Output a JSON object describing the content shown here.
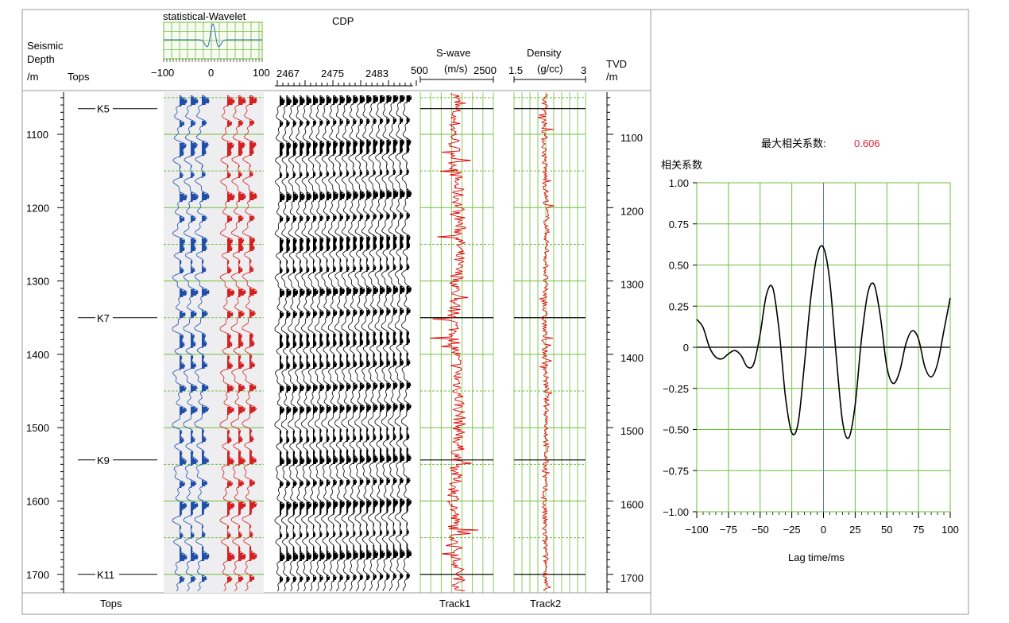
{
  "header": {
    "depth_label": [
      "Seismic",
      "Depth",
      "/m"
    ],
    "tops_label": "Tops",
    "wavelet_title": "statistical-Wavelet",
    "wavelet_ticks": [
      "−100",
      "0",
      "100"
    ],
    "cdp_title": "CDP",
    "cdp_ticks": [
      "2467",
      "2475",
      "2483"
    ],
    "swave_title": "S-wave",
    "swave_unit": "(m/s)",
    "swave_ticks": [
      "500",
      "2500"
    ],
    "density_title": "Density",
    "density_unit": "(g/cc)",
    "density_ticks": [
      "1.5",
      "3"
    ],
    "tvd_label": [
      "TVD",
      "/m"
    ]
  },
  "footer": {
    "tops": "Tops",
    "track1": "Track1",
    "track2": "Track2"
  },
  "depth_ticks": [
    "1100",
    "1200",
    "1300",
    "1400",
    "1500",
    "1600",
    "1700"
  ],
  "tops": [
    {
      "name": "K5",
      "depth": 1065
    },
    {
      "name": "K7",
      "depth": 1350
    },
    {
      "name": "K9",
      "depth": 1544
    },
    {
      "name": "K11",
      "depth": 1700
    }
  ],
  "colors": {
    "grid": "#6cbf3a",
    "synthetic": "#1f4fa8",
    "seismic": "#d42020",
    "trace": "#000000",
    "log": "#e00000",
    "corr_curve": "#000000",
    "max_value": "#d7263d"
  },
  "chart_data": {
    "type": "line",
    "title_prefix": "最大相关系数:",
    "title_value": "0.606",
    "ylabel": "相关系数",
    "xlabel": "Lag time/ms",
    "xlim": [
      -100,
      100
    ],
    "ylim": [
      -1.0,
      1.0
    ],
    "xticks": [
      "−100",
      "−75",
      "−50",
      "−25",
      "0",
      "25",
      "50",
      "75",
      "100"
    ],
    "yticks": [
      "1.00",
      "0.75",
      "0.50",
      "0.25",
      "0",
      "−0.25",
      "−0.50",
      "−0.75",
      "−1.00"
    ],
    "grid": true,
    "x": [
      -100,
      -95,
      -90,
      -85,
      -80,
      -75,
      -70,
      -65,
      -60,
      -55,
      -50,
      -45,
      -40,
      -35,
      -30,
      -25,
      -20,
      -15,
      -10,
      -5,
      0,
      5,
      10,
      15,
      20,
      25,
      30,
      35,
      40,
      45,
      50,
      55,
      60,
      65,
      70,
      75,
      80,
      85,
      90,
      95,
      100
    ],
    "y": [
      0.17,
      0.12,
      0.0,
      -0.06,
      -0.07,
      -0.04,
      -0.02,
      -0.05,
      -0.12,
      -0.1,
      0.08,
      0.32,
      0.36,
      0.1,
      -0.3,
      -0.52,
      -0.46,
      -0.1,
      0.3,
      0.56,
      0.606,
      0.4,
      -0.05,
      -0.45,
      -0.55,
      -0.35,
      0.05,
      0.33,
      0.38,
      0.18,
      -0.12,
      -0.22,
      -0.15,
      0.02,
      0.1,
      0.05,
      -0.12,
      -0.18,
      -0.1,
      0.1,
      0.3
    ]
  }
}
